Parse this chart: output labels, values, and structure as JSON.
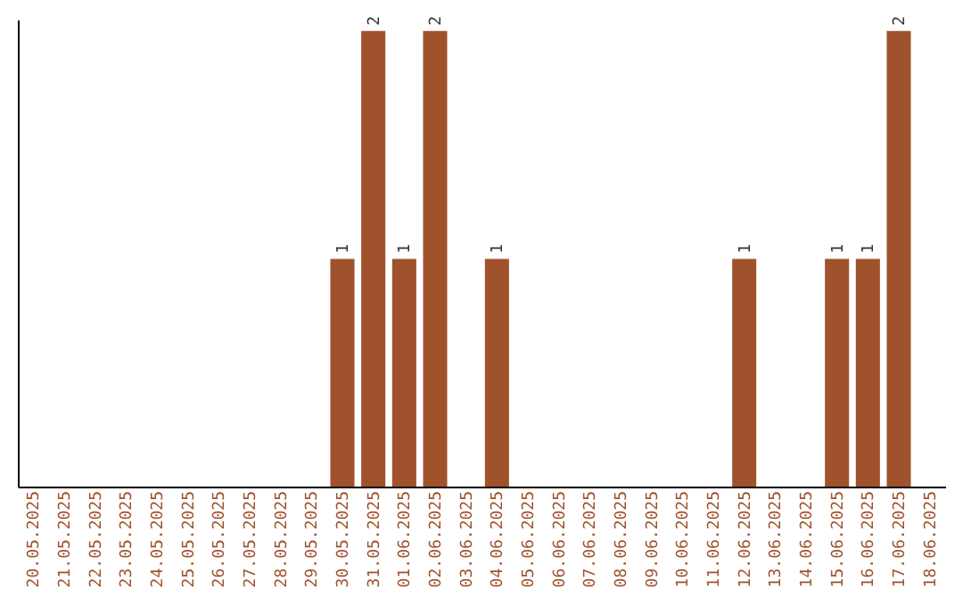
{
  "chart_data": {
    "type": "bar",
    "categories": [
      "20.05.2025",
      "21.05.2025",
      "22.05.2025",
      "23.05.2025",
      "24.05.2025",
      "25.05.2025",
      "26.05.2025",
      "27.05.2025",
      "28.05.2025",
      "29.05.2025",
      "30.05.2025",
      "31.05.2025",
      "01.06.2025",
      "02.06.2025",
      "03.06.2025",
      "04.06.2025",
      "05.06.2025",
      "06.06.2025",
      "07.06.2025",
      "08.06.2025",
      "09.06.2025",
      "10.06.2025",
      "11.06.2025",
      "12.06.2025",
      "13.06.2025",
      "14.06.2025",
      "15.06.2025",
      "16.06.2025",
      "17.06.2025",
      "18.06.2025"
    ],
    "values": [
      0,
      0,
      0,
      0,
      0,
      0,
      0,
      0,
      0,
      0,
      1,
      2,
      1,
      2,
      0,
      1,
      0,
      0,
      0,
      0,
      0,
      0,
      0,
      1,
      0,
      0,
      1,
      1,
      2,
      0
    ],
    "value_labels": [
      null,
      null,
      null,
      null,
      null,
      null,
      null,
      null,
      null,
      null,
      "1",
      "2",
      "1",
      "2",
      null,
      "1",
      null,
      null,
      null,
      null,
      null,
      null,
      null,
      "1",
      null,
      null,
      "1",
      "1",
      "2",
      null
    ],
    "color": "#a0522d",
    "ylim": [
      0,
      2.05
    ],
    "grid": false,
    "tick_labels": "x"
  }
}
